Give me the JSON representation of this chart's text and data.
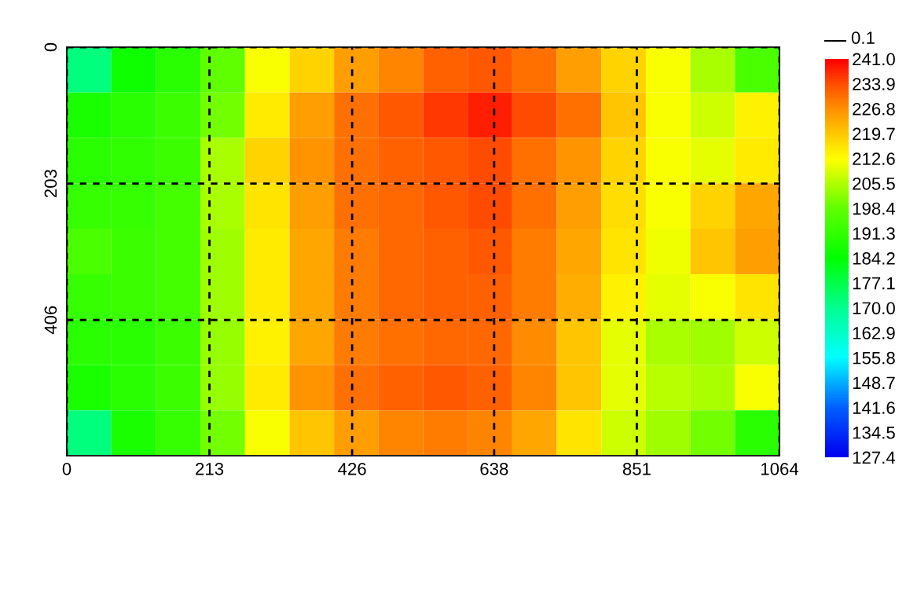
{
  "chart_data": {
    "type": "heatmap",
    "xlim": [
      0,
      1064
    ],
    "xticks": [
      0,
      213,
      426,
      638,
      851,
      1064
    ],
    "ylim": [
      608,
      0
    ],
    "yticks": [
      0,
      203,
      406
    ],
    "grid": true,
    "clim": [
      127.4,
      241.0
    ],
    "cticks": [
      {
        "value": 241.0,
        "label": "241.0"
      },
      {
        "value": 233.9,
        "label": "233.9"
      },
      {
        "value": 226.8,
        "label": "226.8"
      },
      {
        "value": 219.7,
        "label": "219.7"
      },
      {
        "value": 212.6,
        "label": "212.6"
      },
      {
        "value": 205.5,
        "label": "205.5"
      },
      {
        "value": 198.4,
        "label": "198.4"
      },
      {
        "value": 191.3,
        "label": "191.3"
      },
      {
        "value": 184.2,
        "label": "184.2"
      },
      {
        "value": 177.1,
        "label": "177.1"
      },
      {
        "value": 170.0,
        "label": "170.0"
      },
      {
        "value": 162.9,
        "label": "162.9"
      },
      {
        "value": 155.8,
        "label": "155.8"
      },
      {
        "value": 148.7,
        "label": "148.7"
      },
      {
        "value": 141.6,
        "label": "141.6"
      },
      {
        "value": 134.5,
        "label": "134.5"
      },
      {
        "value": 127.4,
        "label": "127.4"
      }
    ],
    "annotations": [
      "0.1"
    ],
    "cells": [
      [
        172,
        186,
        190,
        198,
        212,
        218,
        225,
        228,
        232,
        233,
        230,
        225,
        218,
        212,
        205,
        195
      ],
      [
        188,
        190,
        193,
        200,
        215,
        225,
        230,
        233,
        236,
        238,
        234,
        230,
        220,
        212,
        208,
        214
      ],
      [
        190,
        191,
        193,
        205,
        218,
        226,
        230,
        232,
        233,
        234,
        230,
        226,
        218,
        212,
        210,
        215
      ],
      [
        192,
        192,
        194,
        205,
        216,
        225,
        230,
        231,
        233,
        234,
        230,
        225,
        217,
        212,
        218,
        224
      ],
      [
        195,
        193,
        194,
        204,
        215,
        224,
        229,
        231,
        232,
        233,
        229,
        224,
        216,
        211,
        220,
        225
      ],
      [
        192,
        193,
        194,
        204,
        215,
        224,
        229,
        231,
        232,
        232,
        229,
        223,
        214,
        210,
        212,
        216
      ],
      [
        190,
        190,
        193,
        203,
        214,
        224,
        229,
        230,
        231,
        231,
        227,
        220,
        210,
        205,
        204,
        208
      ],
      [
        188,
        190,
        193,
        203,
        215,
        226,
        230,
        232,
        233,
        232,
        228,
        220,
        210,
        206,
        205,
        212
      ],
      [
        172,
        188,
        192,
        200,
        212,
        220,
        225,
        228,
        229,
        228,
        224,
        216,
        208,
        204,
        200,
        190
      ]
    ]
  }
}
